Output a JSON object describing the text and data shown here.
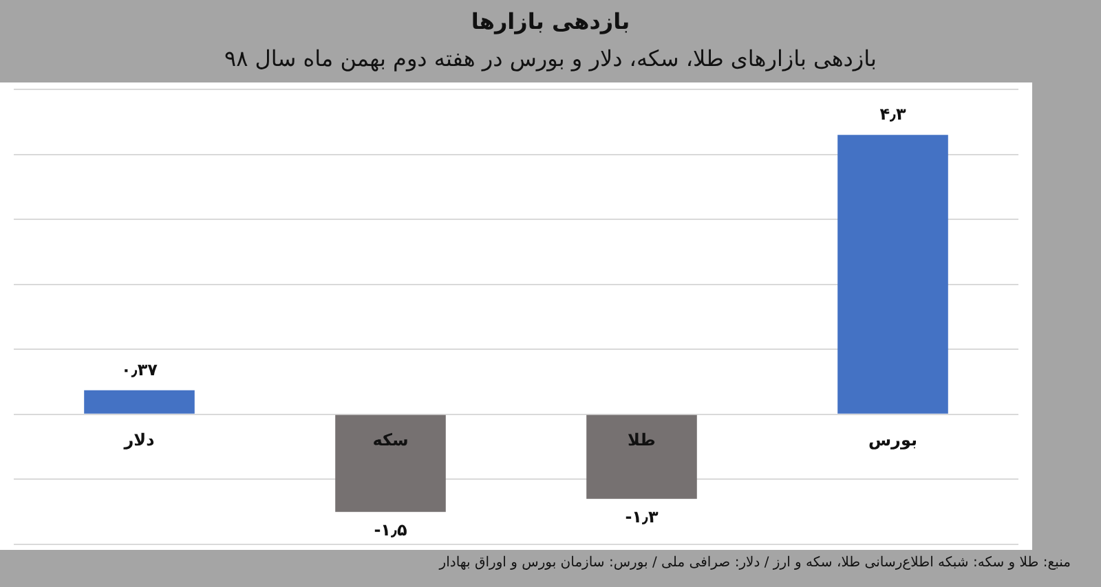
{
  "chart_data": {
    "type": "bar",
    "title": "بازدهی بازارها",
    "subtitle": "بازدهی بازارهای طلا، سکه، دلار و بورس در هفته دوم بهمن ماه سال ۹۸",
    "categories": [
      "دلار",
      "سکه",
      "طلا",
      "بورس"
    ],
    "values": [
      0.37,
      -1.5,
      -1.3,
      4.3
    ],
    "colors": [
      "#4472c4",
      "#767171",
      "#767171",
      "#4472c4"
    ],
    "value_labels": [
      "۰٫۳۷",
      "-۱٫۵",
      "-۱٫۳",
      "۴٫۳"
    ],
    "ylim": [
      -2,
      5
    ],
    "yticks": [
      {
        "value": -2,
        "label": null
      },
      {
        "value": -1,
        "label": null
      },
      {
        "value": 0,
        "label": null
      },
      {
        "value": 1,
        "label": null
      },
      {
        "value": 2,
        "label": null
      },
      {
        "value": 3,
        "label": null
      },
      {
        "value": 4,
        "label": null
      },
      {
        "value": 5,
        "label": null
      }
    ],
    "tick_labels": "x",
    "grid": "y",
    "annotations": [
      "منبع: طلا و سکه: شبکه اطلاع‌رسانی طلا، سکه و ارز / دلار: صرافی ملی / بورس: سازمان بورس و اوراق بهادار"
    ]
  }
}
